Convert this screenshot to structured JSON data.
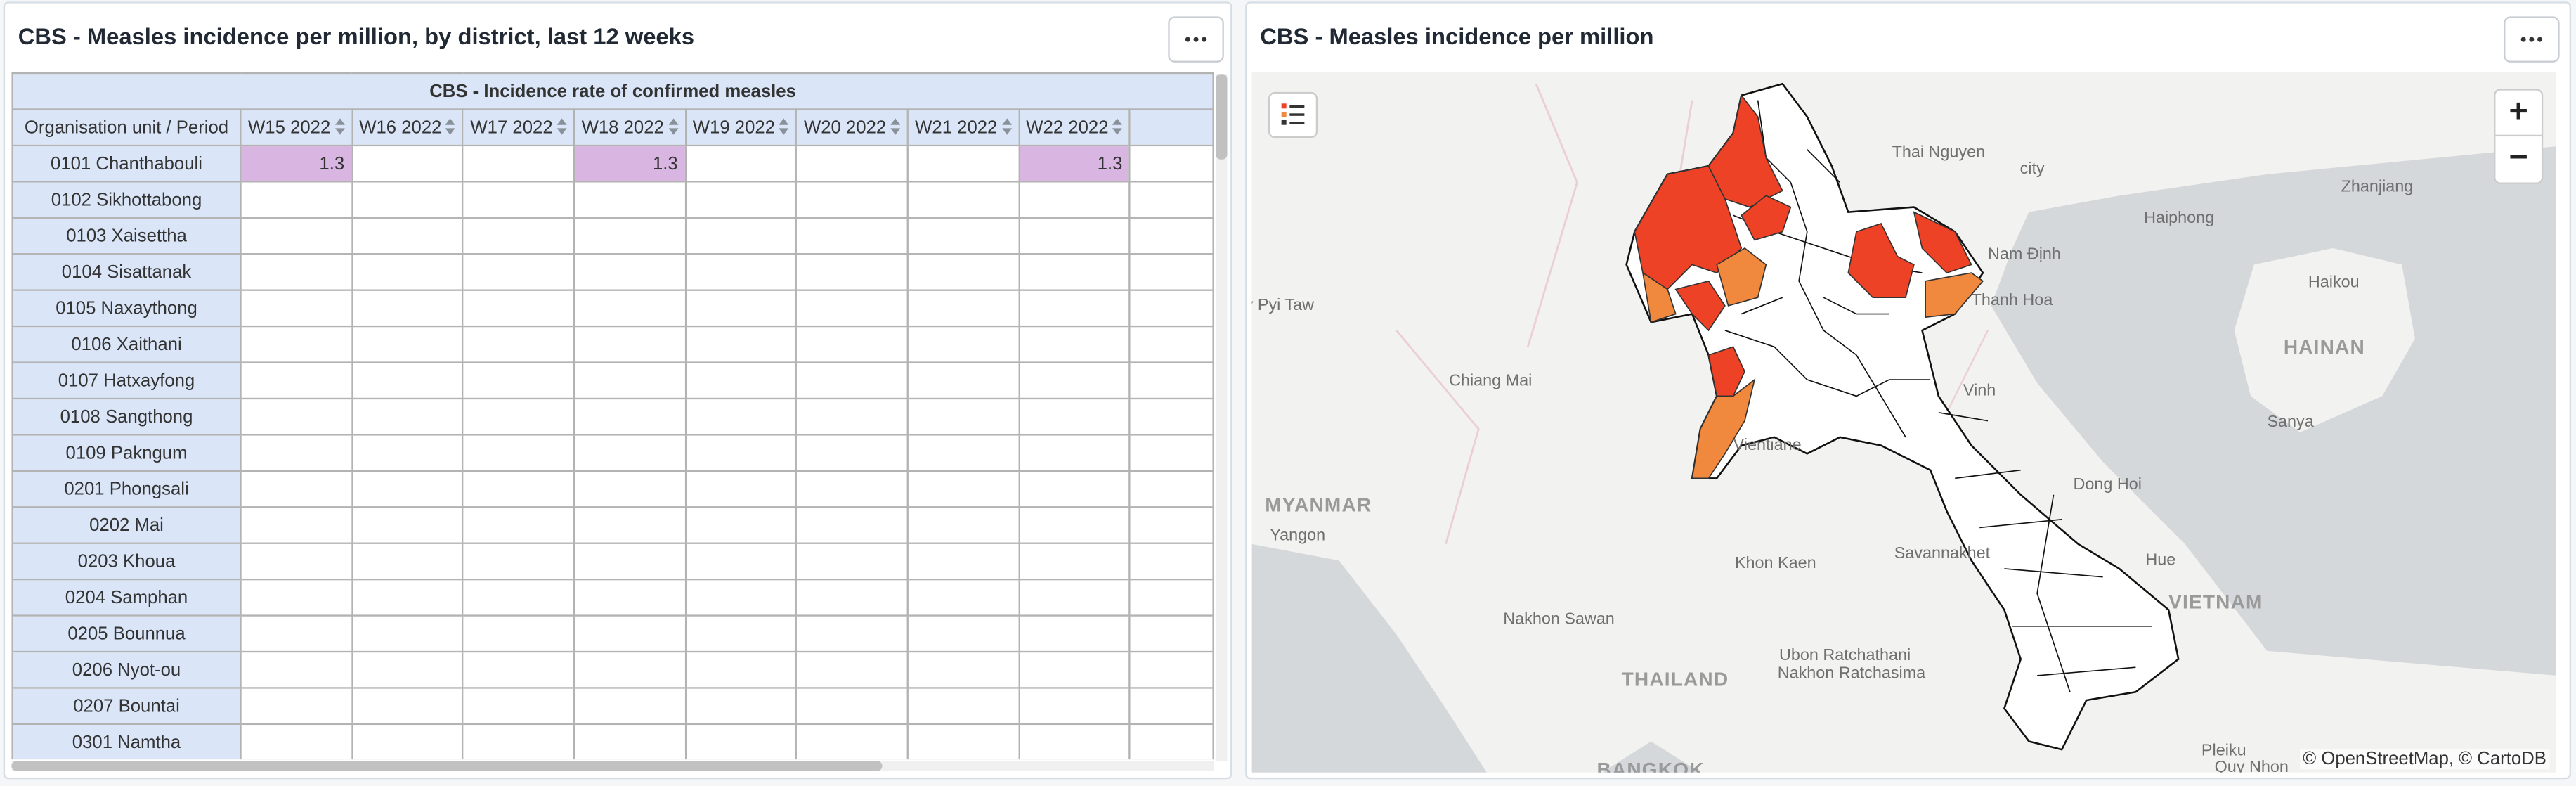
{
  "left_panel": {
    "title": "CBS - Measles incidence per million, by district, last 12 weeks"
  },
  "table": {
    "title": "CBS - Incidence rate of confirmed measles",
    "corner": "Organisation unit / Period",
    "columns": [
      "W15 2022",
      "W16 2022",
      "W17 2022",
      "W18 2022",
      "W19 2022",
      "W20 2022",
      "W21 2022",
      "W22 2022"
    ],
    "rows": [
      {
        "unit": "0101 Chanthabouli",
        "values": [
          1.3,
          null,
          null,
          1.3,
          null,
          null,
          null,
          1.3
        ]
      },
      {
        "unit": "0102 Sikhottabong",
        "values": [
          null,
          null,
          null,
          null,
          null,
          null,
          null,
          null
        ]
      },
      {
        "unit": "0103 Xaisettha",
        "values": [
          null,
          null,
          null,
          null,
          null,
          null,
          null,
          null
        ]
      },
      {
        "unit": "0104 Sisattanak",
        "values": [
          null,
          null,
          null,
          null,
          null,
          null,
          null,
          null
        ]
      },
      {
        "unit": "0105 Naxaythong",
        "values": [
          null,
          null,
          null,
          null,
          null,
          null,
          null,
          null
        ]
      },
      {
        "unit": "0106 Xaithani",
        "values": [
          null,
          null,
          null,
          null,
          null,
          null,
          null,
          null
        ]
      },
      {
        "unit": "0107 Hatxayfong",
        "values": [
          null,
          null,
          null,
          null,
          null,
          null,
          null,
          null
        ]
      },
      {
        "unit": "0108 Sangthong",
        "values": [
          null,
          null,
          null,
          null,
          null,
          null,
          null,
          null
        ]
      },
      {
        "unit": "0109 Pakngum",
        "values": [
          null,
          null,
          null,
          null,
          null,
          null,
          null,
          null
        ]
      },
      {
        "unit": "0201 Phongsali",
        "values": [
          null,
          null,
          null,
          null,
          null,
          null,
          null,
          null
        ]
      },
      {
        "unit": "0202 Mai",
        "values": [
          null,
          null,
          null,
          null,
          null,
          null,
          null,
          null
        ]
      },
      {
        "unit": "0203 Khoua",
        "values": [
          null,
          null,
          null,
          null,
          null,
          null,
          null,
          null
        ]
      },
      {
        "unit": "0204 Samphan",
        "values": [
          null,
          null,
          null,
          null,
          null,
          null,
          null,
          null
        ]
      },
      {
        "unit": "0205 Bounnua",
        "values": [
          null,
          null,
          null,
          null,
          null,
          null,
          null,
          null
        ]
      },
      {
        "unit": "0206 Nyot-ou",
        "values": [
          null,
          null,
          null,
          null,
          null,
          null,
          null,
          null
        ]
      },
      {
        "unit": "0207 Bountai",
        "values": [
          null,
          null,
          null,
          null,
          null,
          null,
          null,
          null
        ]
      },
      {
        "unit": "0301 Namtha",
        "values": [
          null,
          null,
          null,
          null,
          null,
          null,
          null,
          null
        ]
      }
    ]
  },
  "right_panel": {
    "title": "CBS - Measles incidence per million"
  },
  "map": {
    "labels": [
      "Thai Nguyen",
      "city",
      "Haiphong",
      "Zhanjiang",
      "Nam Định",
      "Thanh Hoa",
      "Haikou",
      "HAINAN",
      "Nay Pyi Taw",
      "Chiang Mai",
      "Vinh",
      "Sanya",
      "Dong Hoi",
      "MYANMAR",
      "Yangon",
      "Savannakhet",
      "Khon Kaen",
      "Hue",
      "VIETNAM",
      "Vientiane",
      "Nakhon Sawan",
      "THAILAND",
      "Ubon Ratchathani",
      "Nakhon Ratchasima",
      "Pleiku",
      "BANGKOK",
      "Quy Nhon"
    ],
    "zoom_in": "+",
    "zoom_out": "−",
    "attribution": "© OpenStreetMap, © CartoDB"
  }
}
